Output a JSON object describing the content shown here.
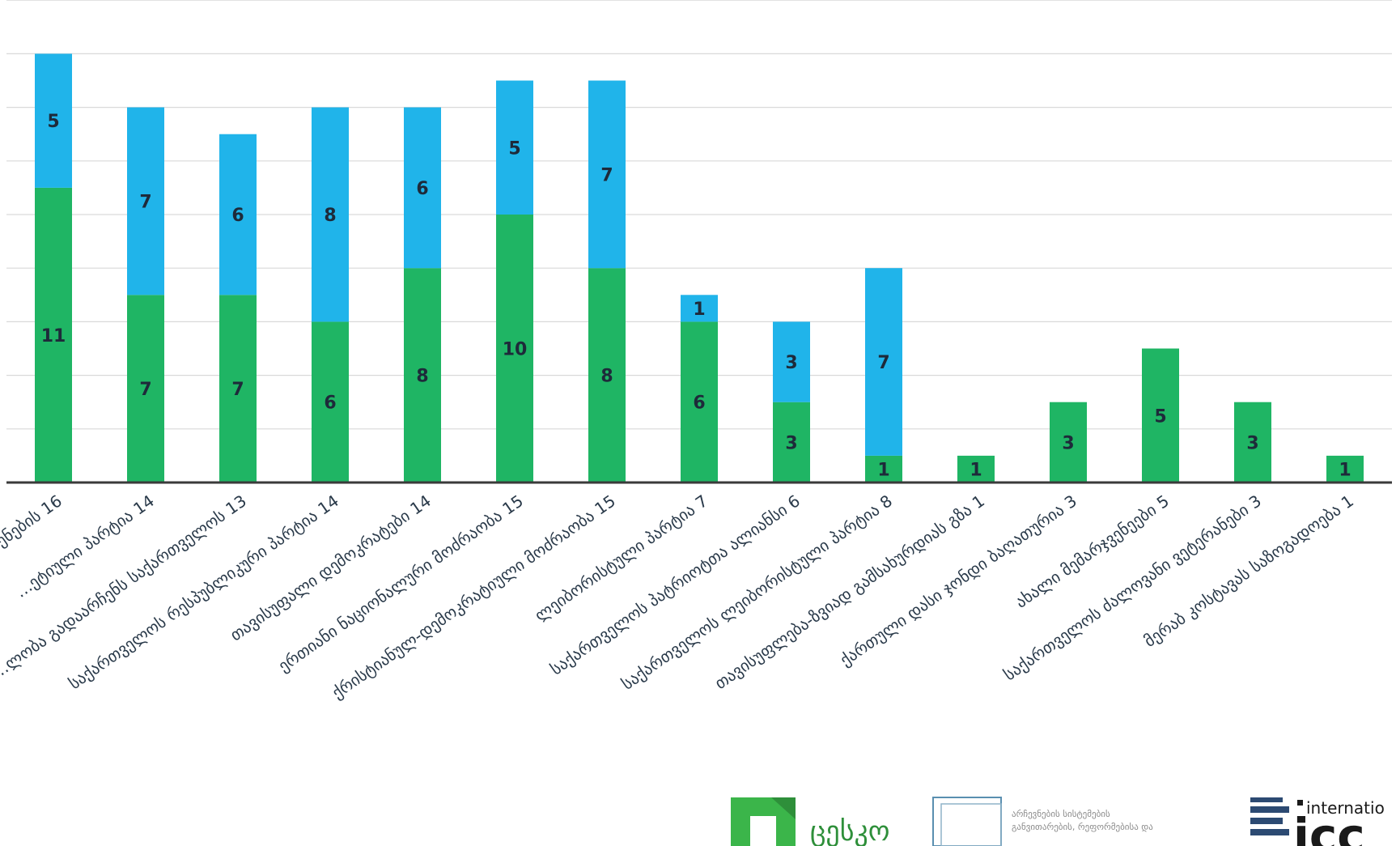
{
  "chart_data": {
    "type": "bar",
    "stacked": true,
    "categories": [
      "…ენების 16",
      "…ეტიული პარტია 14",
      "…ლობა გადაარჩენს საქართველოს 13",
      "საქართველოს რესპუბლიკური პარტია 14",
      "თავისუფალი დემოკრატები 14",
      "ერთიანი ნაციონალური მოძრაობა 15",
      "ქრისტიანულ-დემოკრატიული მოძრაობა 15",
      "ლეიბორისტული პარტია 7",
      "საქართველოს პატრიოტთა ალიანსი 6",
      "საქართველოს ლეიბორისტული პარტია 8",
      "თავისუფლება-ზვიად გამსახურდიას გზა 1",
      "ქართული დასი ჯონდი ბაღათურია 3",
      "ახალი მემარჯვენეები 5",
      "საქართველოს ძალოვანი ვეტერანები 3",
      "მერაბ კოსტავას საზოგადოება 1"
    ],
    "series": [
      {
        "name": "",
        "color": "#1fb564",
        "values": [
          11,
          7,
          7,
          6,
          8,
          10,
          8,
          6,
          3,
          1,
          1,
          3,
          5,
          3,
          1
        ]
      },
      {
        "name": "",
        "color": "#20b4ea",
        "values": [
          5,
          7,
          6,
          8,
          6,
          5,
          7,
          1,
          3,
          7,
          0,
          0,
          0,
          0,
          0
        ]
      }
    ],
    "ylim": [
      0,
      18
    ],
    "grid": true,
    "xlabel": "",
    "ylabel": ""
  },
  "logos": {
    "cesko": "ცესკო",
    "center_lines": [
      "არჩევნების სისტემების",
      "განვითარების, რეფორმებისა და"
    ],
    "icc_top": "internatio",
    "icc_main": "icc"
  }
}
